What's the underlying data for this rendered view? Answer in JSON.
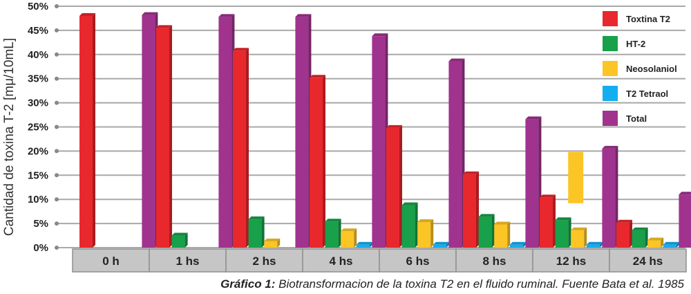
{
  "chart_data": {
    "type": "bar",
    "ylabel": "Cantidad de toxina T-2 [mμ/10mL]",
    "xlabel": "",
    "ylim": [
      0,
      50
    ],
    "yticks": [
      0,
      5,
      10,
      15,
      20,
      25,
      30,
      35,
      40,
      45,
      50
    ],
    "ytick_labels": [
      "0%",
      "5%",
      "10%",
      "15%",
      "20%",
      "25%",
      "30%",
      "35%",
      "40%",
      "45%",
      "50%"
    ],
    "categories": [
      "0 h",
      "1 hs",
      "2 hs",
      "4 hs",
      "6 hs",
      "8 hs",
      "12 hs",
      "24 hs"
    ],
    "legend_position": "top-right",
    "grid": true,
    "series": [
      {
        "name": "Toxtina T2",
        "color": "#e8282d",
        "values": [
          48,
          45.5,
          40.8,
          35.2,
          24.8,
          15.2,
          10.4,
          5.2
        ]
      },
      {
        "name": "HT-2",
        "color": "#18a04a",
        "values": [
          0,
          2.5,
          5.9,
          5.4,
          8.8,
          6.4,
          5.7,
          3.6
        ]
      },
      {
        "name": "Neosolaniol",
        "color": "#fcc526",
        "values": [
          0,
          0,
          1.3,
          3.4,
          5.3,
          4.8,
          3.6,
          1.5
        ]
      },
      {
        "name": "T2 Tetraol",
        "color": "#13aef0",
        "values": [
          0,
          0,
          0,
          0.6,
          0.6,
          0.6,
          0.6,
          0.6
        ]
      },
      {
        "name": "Total",
        "color": "#a0338e",
        "values": [
          48.2,
          47.8,
          47.8,
          43.8,
          38.6,
          26.6,
          20.5,
          11
        ]
      }
    ],
    "annotations": [
      {
        "type": "floating_bar",
        "category": "12 hs",
        "series": "Neosolaniol",
        "from": 9.2,
        "to": 19.8
      }
    ]
  },
  "caption": {
    "label": "Gráfico 1:",
    "text": " Biotransformacion de la toxina T2 en el fluido ruminal. Fuente Bata et al. 1985"
  }
}
